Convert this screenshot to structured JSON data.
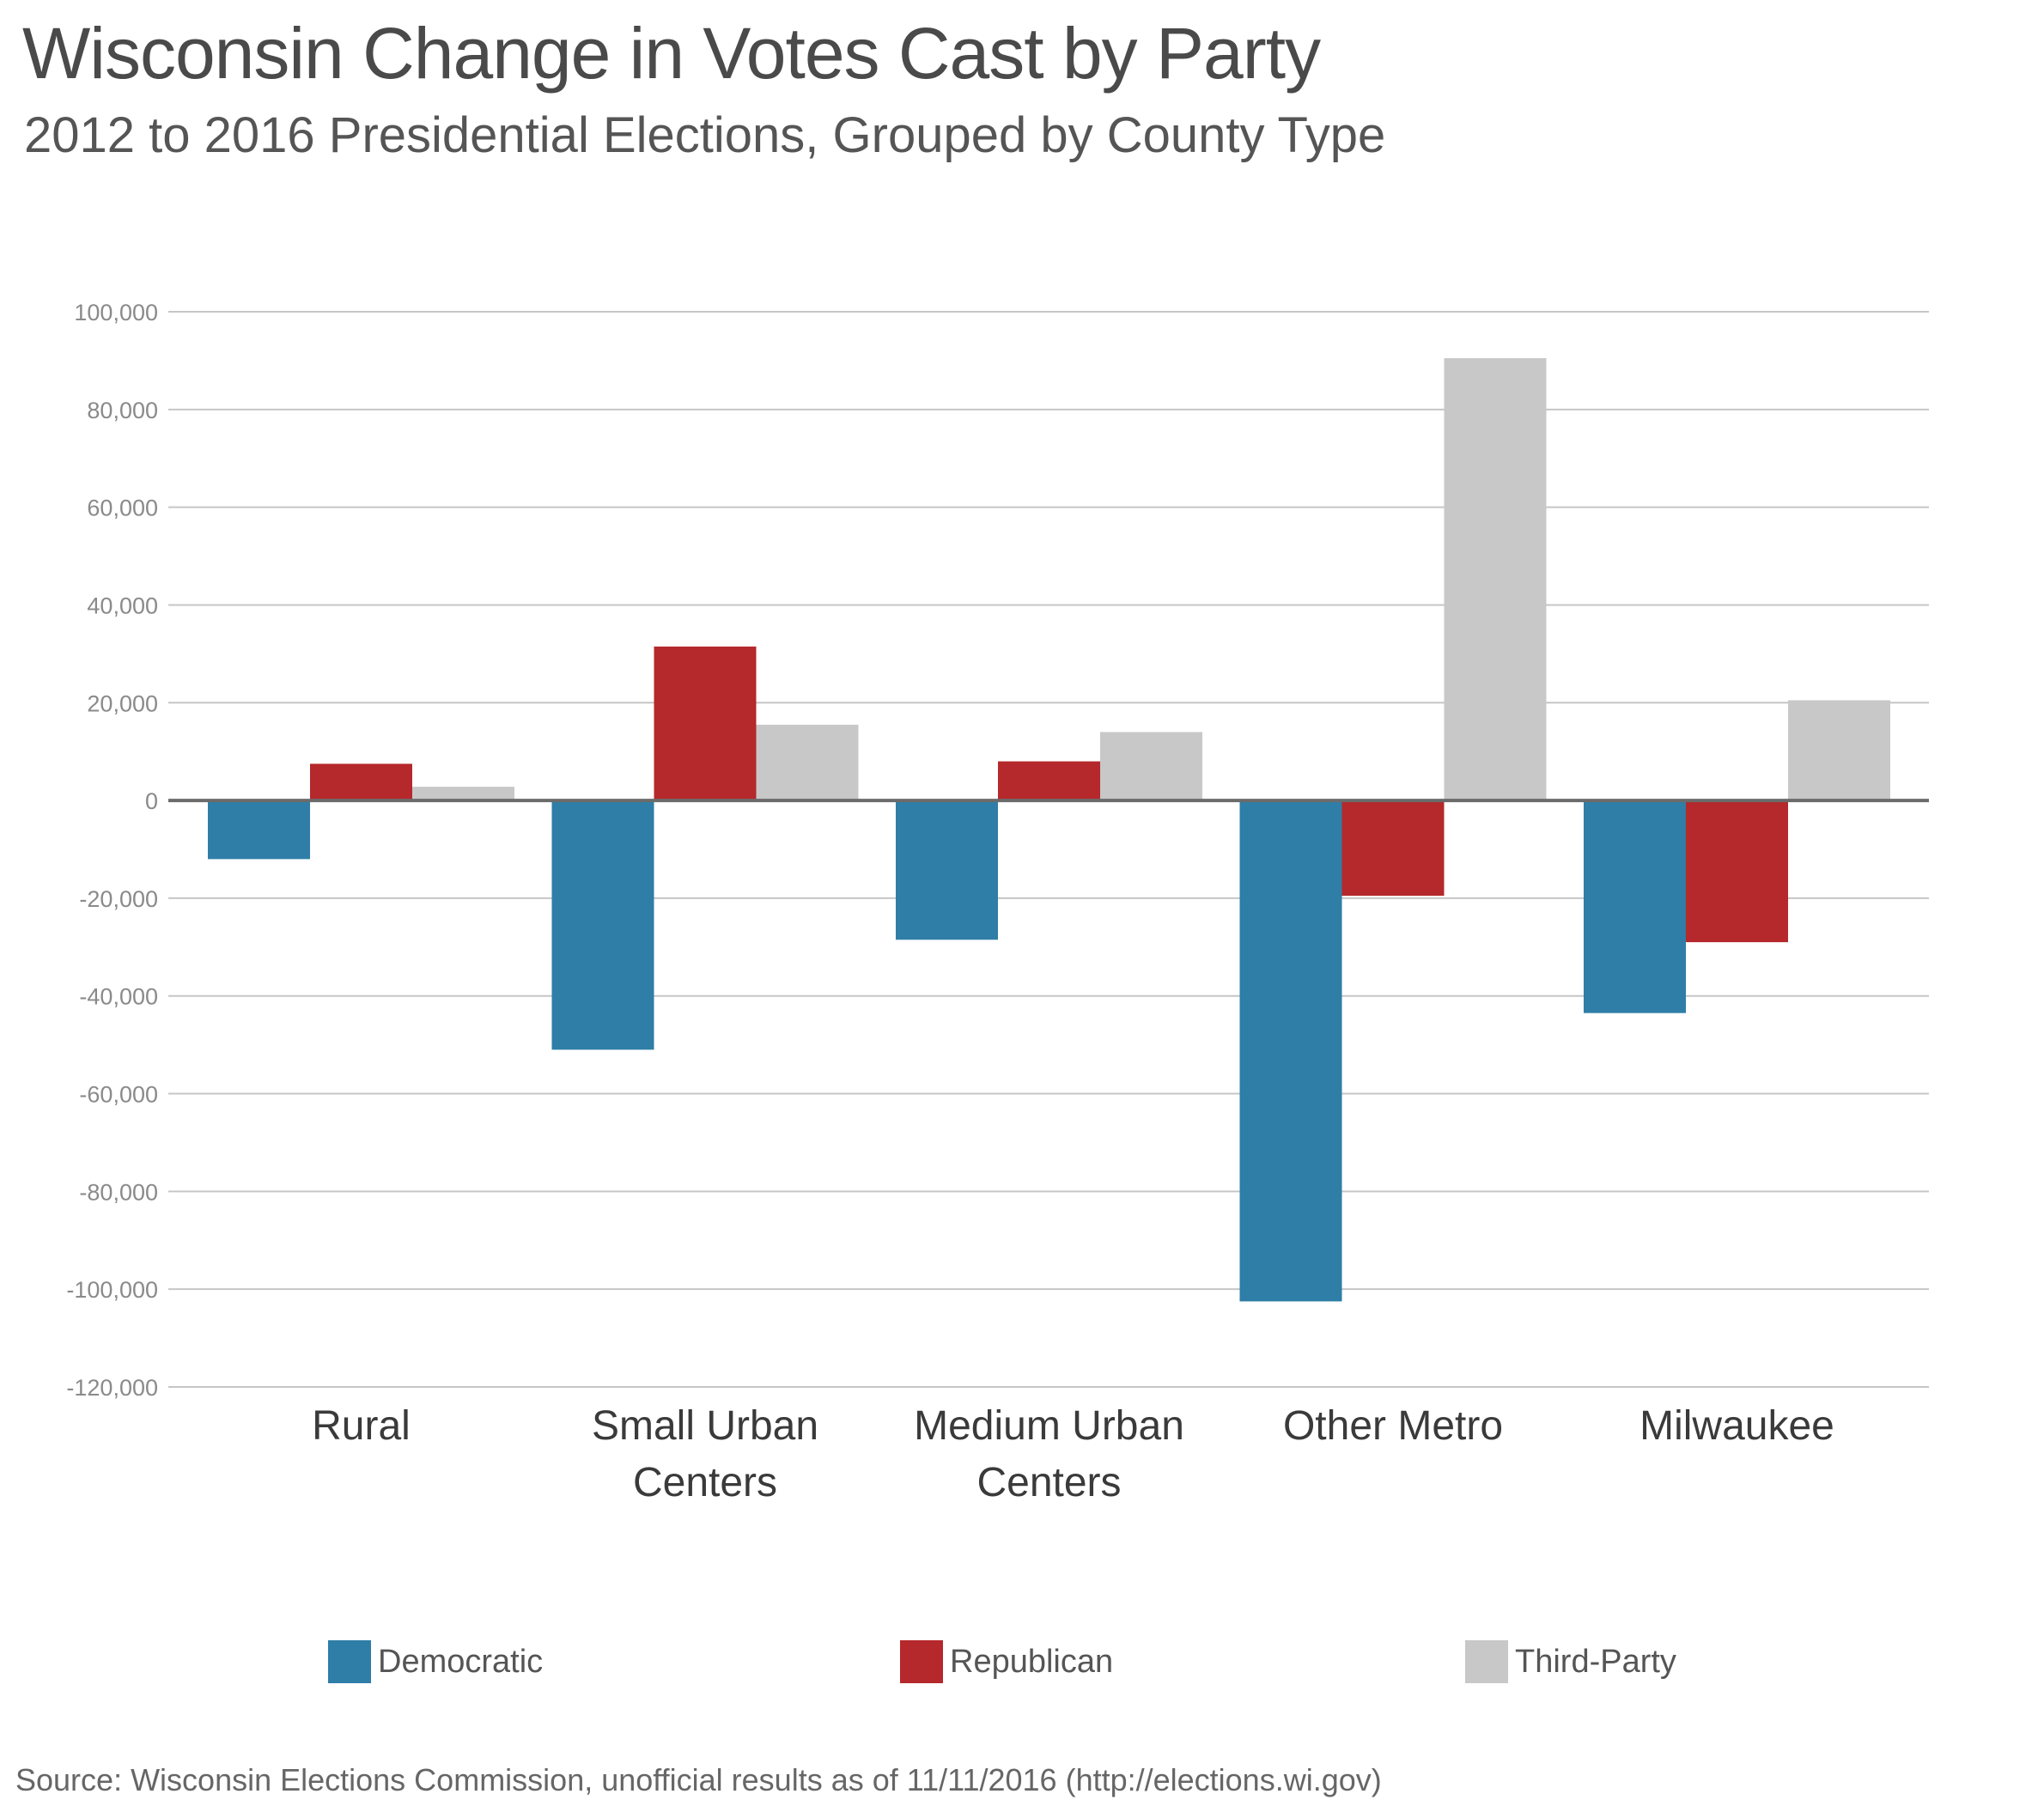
{
  "title": "Wisconsin Change in Votes Cast by Party",
  "subtitle": "2012 to 2016 Presidential Elections, Grouped by County Type",
  "source": "Source: Wisconsin Elections Commission, unofficial results as of 11/11/2016 (http://elections.wi.gov)",
  "colors": {
    "Democratic": "#2e7ea7",
    "Republican": "#b5282b",
    "Third-Party": "#c8c8c8",
    "grid": "#c6c6c6",
    "zero": "#6b6b6b"
  },
  "chart_data": {
    "type": "bar",
    "title": "Wisconsin Change in Votes Cast by Party",
    "subtitle": "2012 to 2016 Presidential Elections, Grouped by County Type",
    "categories": [
      "Rural",
      "Small Urban Centers",
      "Medium Urban Centers",
      "Other Metro",
      "Milwaukee"
    ],
    "category_lines": [
      [
        "Rural"
      ],
      [
        "Small Urban",
        "Centers"
      ],
      [
        "Medium Urban",
        "Centers"
      ],
      [
        "Other Metro"
      ],
      [
        "Milwaukee"
      ]
    ],
    "series": [
      {
        "name": "Democratic",
        "values": [
          -12000,
          -51000,
          -28500,
          -102500,
          -43500
        ]
      },
      {
        "name": "Republican",
        "values": [
          7500,
          31500,
          8000,
          -19500,
          -29000
        ]
      },
      {
        "name": "Third-Party",
        "values": [
          2800,
          15500,
          14000,
          90500,
          20500
        ]
      }
    ],
    "ylim": [
      -120000,
      100000
    ],
    "yticks": [
      100000,
      80000,
      60000,
      40000,
      20000,
      0,
      -20000,
      -40000,
      -60000,
      -80000,
      -100000,
      -120000
    ],
    "ytick_labels": [
      "100,000",
      "80,000",
      "60,000",
      "40,000",
      "20,000",
      "0",
      "-20,000",
      "-40,000",
      "-60,000",
      "-80,000",
      "-100,000",
      "-120,000"
    ],
    "xlabel": "",
    "ylabel": "",
    "grid": true,
    "legend_position": "bottom"
  }
}
